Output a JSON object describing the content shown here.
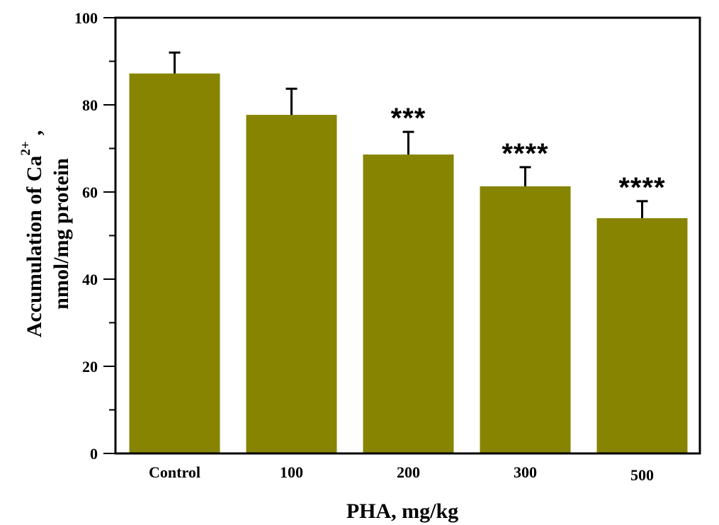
{
  "chart_data": {
    "type": "bar",
    "title": "",
    "xlabel": "PHA, mg/kg",
    "ylabel_line1": "Accumulation of Ca",
    "ylabel_superscript": "2+",
    "ylabel_suffix": ",",
    "ylabel_line2": "nmol/mg protein",
    "categories": [
      "Control",
      "100",
      "200",
      "300",
      "500"
    ],
    "values": [
      87.2,
      77.7,
      68.6,
      61.3,
      54.0
    ],
    "error_upper": [
      92.0,
      83.7,
      73.8,
      65.7,
      57.9
    ],
    "significance": [
      "",
      "",
      "***",
      "****",
      "****"
    ],
    "ylim": [
      0,
      100
    ],
    "yticks": [
      0,
      20,
      40,
      60,
      80,
      100
    ],
    "yminor_step": 10,
    "grid": false,
    "bar_color": "#868400",
    "axis_color": "#000000"
  }
}
